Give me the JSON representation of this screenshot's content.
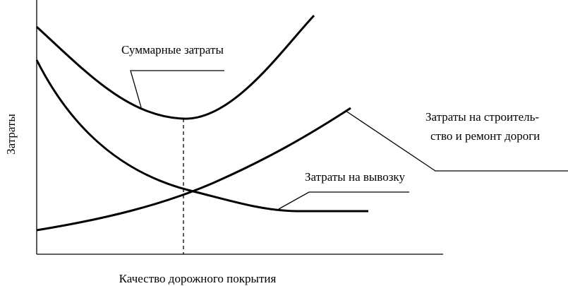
{
  "y_axis_label": "Затраты",
  "x_axis_label": "Качество дорожного покрытия",
  "curves": [
    {
      "label": "Суммарные затраты"
    },
    {
      "label_lines": [
        "Затраты на строитель-",
        "ство и ремонт дороги"
      ]
    },
    {
      "label": "Затраты на вывозку"
    }
  ]
}
